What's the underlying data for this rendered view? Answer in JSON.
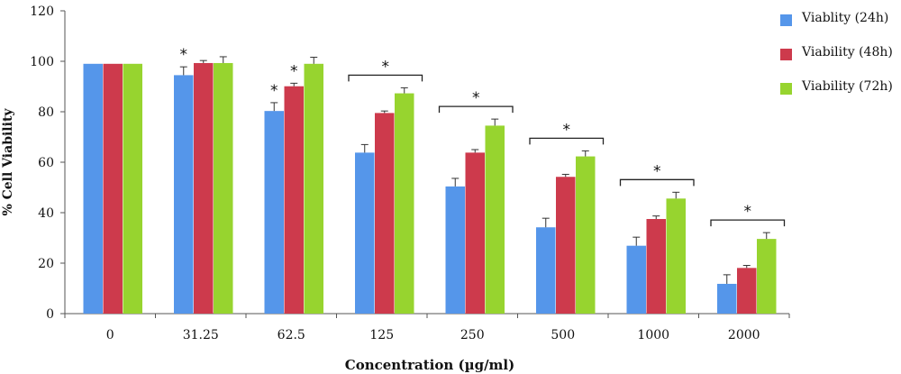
{
  "chart_data": {
    "type": "bar",
    "xlabel": "Concentration (µg/ml)",
    "ylabel": "% Cell Viability",
    "ylim": [
      0,
      120
    ],
    "yticks": [
      0,
      20,
      40,
      60,
      80,
      100,
      120
    ],
    "categories": [
      "0",
      "31.25",
      "62.5",
      "125",
      "250",
      "500",
      "1000",
      "2000"
    ],
    "series": [
      {
        "name": "Viablity (24h)",
        "color": "#5596ea",
        "values": [
          99,
          94.5,
          80.3,
          63.8,
          50.4,
          34.2,
          26.9,
          11.8
        ],
        "errors": [
          0,
          3.3,
          3.3,
          3.2,
          3.2,
          3.6,
          3.4,
          3.6
        ]
      },
      {
        "name": "Viability (48h)",
        "color": "#cd3a4c",
        "values": [
          99,
          99.3,
          90.1,
          79.5,
          63.8,
          54.2,
          37.5,
          18.1
        ],
        "errors": [
          0,
          1.0,
          1.2,
          0.8,
          1.2,
          1.0,
          1.2,
          1.0
        ]
      },
      {
        "name": "Viability (72h)",
        "color": "#97d42f",
        "values": [
          99,
          99.3,
          99,
          87.3,
          74.5,
          62.3,
          45.6,
          29.6
        ],
        "errors": [
          0,
          2.5,
          2.6,
          2.2,
          2.6,
          2.2,
          2.5,
          2.5
        ]
      }
    ],
    "significance": [
      {
        "category": "31.25",
        "marker": "*",
        "bracket": false,
        "series": [
          "Viablity (24h)"
        ]
      },
      {
        "category": "62.5",
        "marker": "*",
        "bracket": false,
        "series": [
          "Viablity (24h)"
        ]
      },
      {
        "category": "62.5",
        "marker": "*",
        "bracket": false,
        "series": [
          "Viability (48h)"
        ]
      },
      {
        "category": "125",
        "marker": "*",
        "bracket": true,
        "series": [
          "Viablity (24h)",
          "Viability (48h)",
          "Viability (72h)"
        ]
      },
      {
        "category": "250",
        "marker": "*",
        "bracket": true,
        "series": [
          "Viablity (24h)",
          "Viability (48h)",
          "Viability (72h)"
        ]
      },
      {
        "category": "500",
        "marker": "*",
        "bracket": true,
        "series": [
          "Viablity (24h)",
          "Viability (48h)",
          "Viability (72h)"
        ]
      },
      {
        "category": "1000",
        "marker": "*",
        "bracket": true,
        "series": [
          "Viablity (24h)",
          "Viability (48h)",
          "Viability (72h)"
        ]
      },
      {
        "category": "2000",
        "marker": "*",
        "bracket": true,
        "series": [
          "Viablity (24h)",
          "Viability (48h)",
          "Viability (72h)"
        ]
      }
    ],
    "legend_position": "top-right",
    "grid": false
  }
}
